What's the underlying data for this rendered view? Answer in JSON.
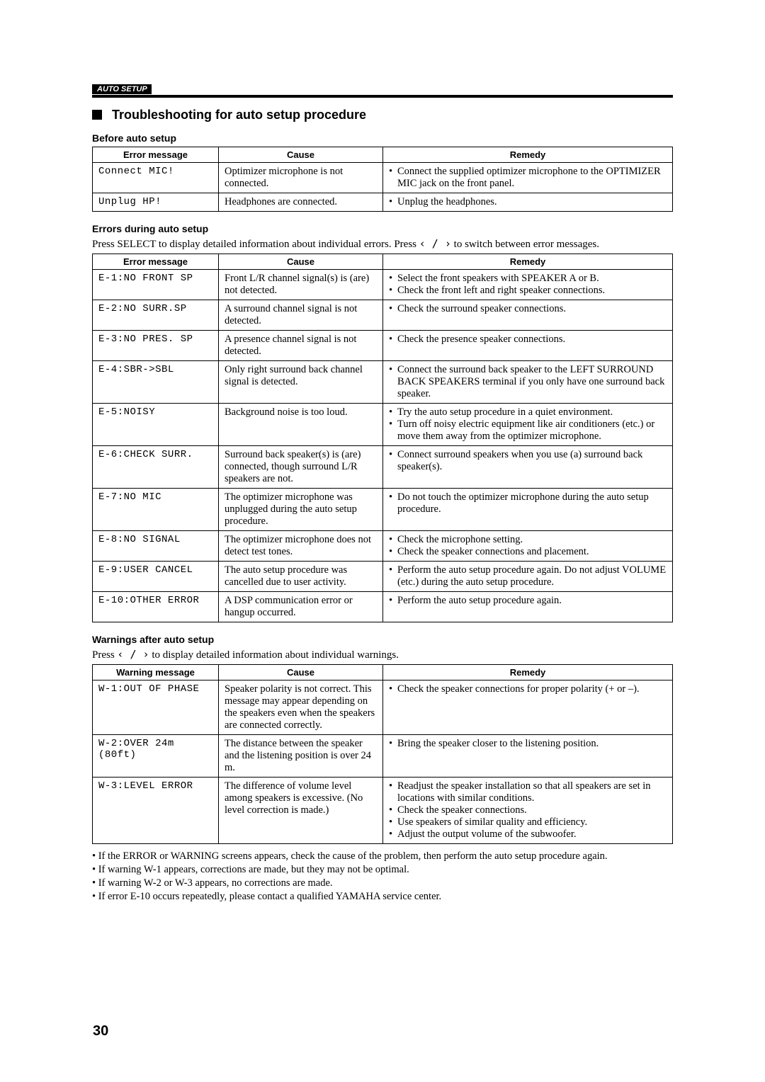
{
  "header_tag": "AUTO SETUP",
  "section_title": "Troubleshooting for auto setup procedure",
  "tables": {
    "before": {
      "heading": "Before auto setup",
      "cols": [
        "Error message",
        "Cause",
        "Remedy"
      ],
      "rows": [
        {
          "msg": "Connect MIC!",
          "cause": "Optimizer microphone is not connected.",
          "remedy": [
            "Connect the supplied optimizer microphone to the OPTIMIZER MIC jack on the front panel."
          ]
        },
        {
          "msg": "Unplug HP!",
          "cause": "Headphones are connected.",
          "remedy": [
            "Unplug the headphones."
          ]
        }
      ]
    },
    "errors": {
      "heading": "Errors during auto setup",
      "intro_pre": "Press SELECT to display detailed information about individual errors. Press ",
      "intro_arrows": "‹ / ›",
      "intro_post": " to switch between error messages.",
      "cols": [
        "Error message",
        "Cause",
        "Remedy"
      ],
      "rows": [
        {
          "msg": "E-1:NO FRONT SP",
          "cause": "Front L/R channel signal(s) is (are) not detected.",
          "remedy": [
            "Select the front speakers with SPEAKER A or B.",
            "Check the front left and right speaker connections."
          ]
        },
        {
          "msg": "E-2:NO SURR.SP",
          "cause": "A surround channel signal is not detected.",
          "remedy": [
            "Check the surround speaker connections."
          ]
        },
        {
          "msg": "E-3:NO PRES. SP",
          "cause": "A presence channel signal is not detected.",
          "remedy": [
            "Check the presence speaker connections."
          ]
        },
        {
          "msg": "E-4:SBR->SBL",
          "cause": "Only right surround back channel signal is detected.",
          "remedy": [
            "Connect the surround back speaker to the LEFT SURROUND BACK SPEAKERS terminal if you only have one surround back speaker."
          ]
        },
        {
          "msg": "E-5:NOISY",
          "cause": "Background noise is too loud.",
          "remedy": [
            "Try the auto setup procedure in a quiet environment.",
            "Turn off noisy electric equipment like air conditioners (etc.) or move them away from the optimizer microphone."
          ]
        },
        {
          "msg": "E-6:CHECK SURR.",
          "cause": "Surround back speaker(s) is (are) connected, though surround L/R speakers are not.",
          "remedy": [
            "Connect surround speakers when you use (a) surround back speaker(s)."
          ]
        },
        {
          "msg": "E-7:NO MIC",
          "cause": "The optimizer microphone was unplugged during the auto setup procedure.",
          "remedy": [
            "Do not touch the optimizer microphone during the auto setup procedure."
          ]
        },
        {
          "msg": "E-8:NO SIGNAL",
          "cause": "The optimizer microphone does not detect test tones.",
          "remedy": [
            "Check the microphone setting.",
            "Check the speaker connections and placement."
          ]
        },
        {
          "msg": "E-9:USER CANCEL",
          "cause": "The auto setup procedure was cancelled due to user activity.",
          "remedy": [
            "Perform the auto setup procedure again. Do not adjust VOLUME (etc.) during the auto setup procedure."
          ]
        },
        {
          "msg": "E-10:OTHER ERROR",
          "cause": "A DSP communication error or hangup occurred.",
          "remedy": [
            "Perform the auto setup procedure again."
          ]
        }
      ]
    },
    "warnings": {
      "heading": "Warnings after auto setup",
      "intro_pre": "Press ",
      "intro_arrows": "‹ / ›",
      "intro_post": " to display detailed information about individual warnings.",
      "cols": [
        "Warning message",
        "Cause",
        "Remedy"
      ],
      "rows": [
        {
          "msg": "W-1:OUT OF PHASE",
          "cause": "Speaker polarity is not correct. This message may appear depending on the speakers even when the speakers are connected correctly.",
          "remedy": [
            "Check the speaker connections for proper polarity (+ or –)."
          ]
        },
        {
          "msg": "W-2:OVER 24m (80ft)",
          "cause": "The distance between the speaker and the listening position is over 24 m.",
          "remedy": [
            "Bring the speaker closer to the listening position."
          ]
        },
        {
          "msg": "W-3:LEVEL ERROR",
          "cause": "The difference of volume level among speakers is excessive. (No level correction is made.)",
          "remedy": [
            "Readjust the speaker installation so that all speakers are set in locations with similar conditions.",
            "Check the speaker connections.",
            "Use speakers of similar quality and efficiency.",
            "Adjust the output volume of the subwoofer."
          ]
        }
      ]
    }
  },
  "notes": [
    "If the ERROR or WARNING screens appears, check the cause of the problem, then perform the auto setup procedure again.",
    "If warning W-1 appears, corrections are made, but they may not be optimal.",
    "If warning W-2 or W-3 appears, no corrections are made.",
    "If error E-10 occurs repeatedly, please contact a qualified YAMAHA service center."
  ],
  "page_number": "30"
}
